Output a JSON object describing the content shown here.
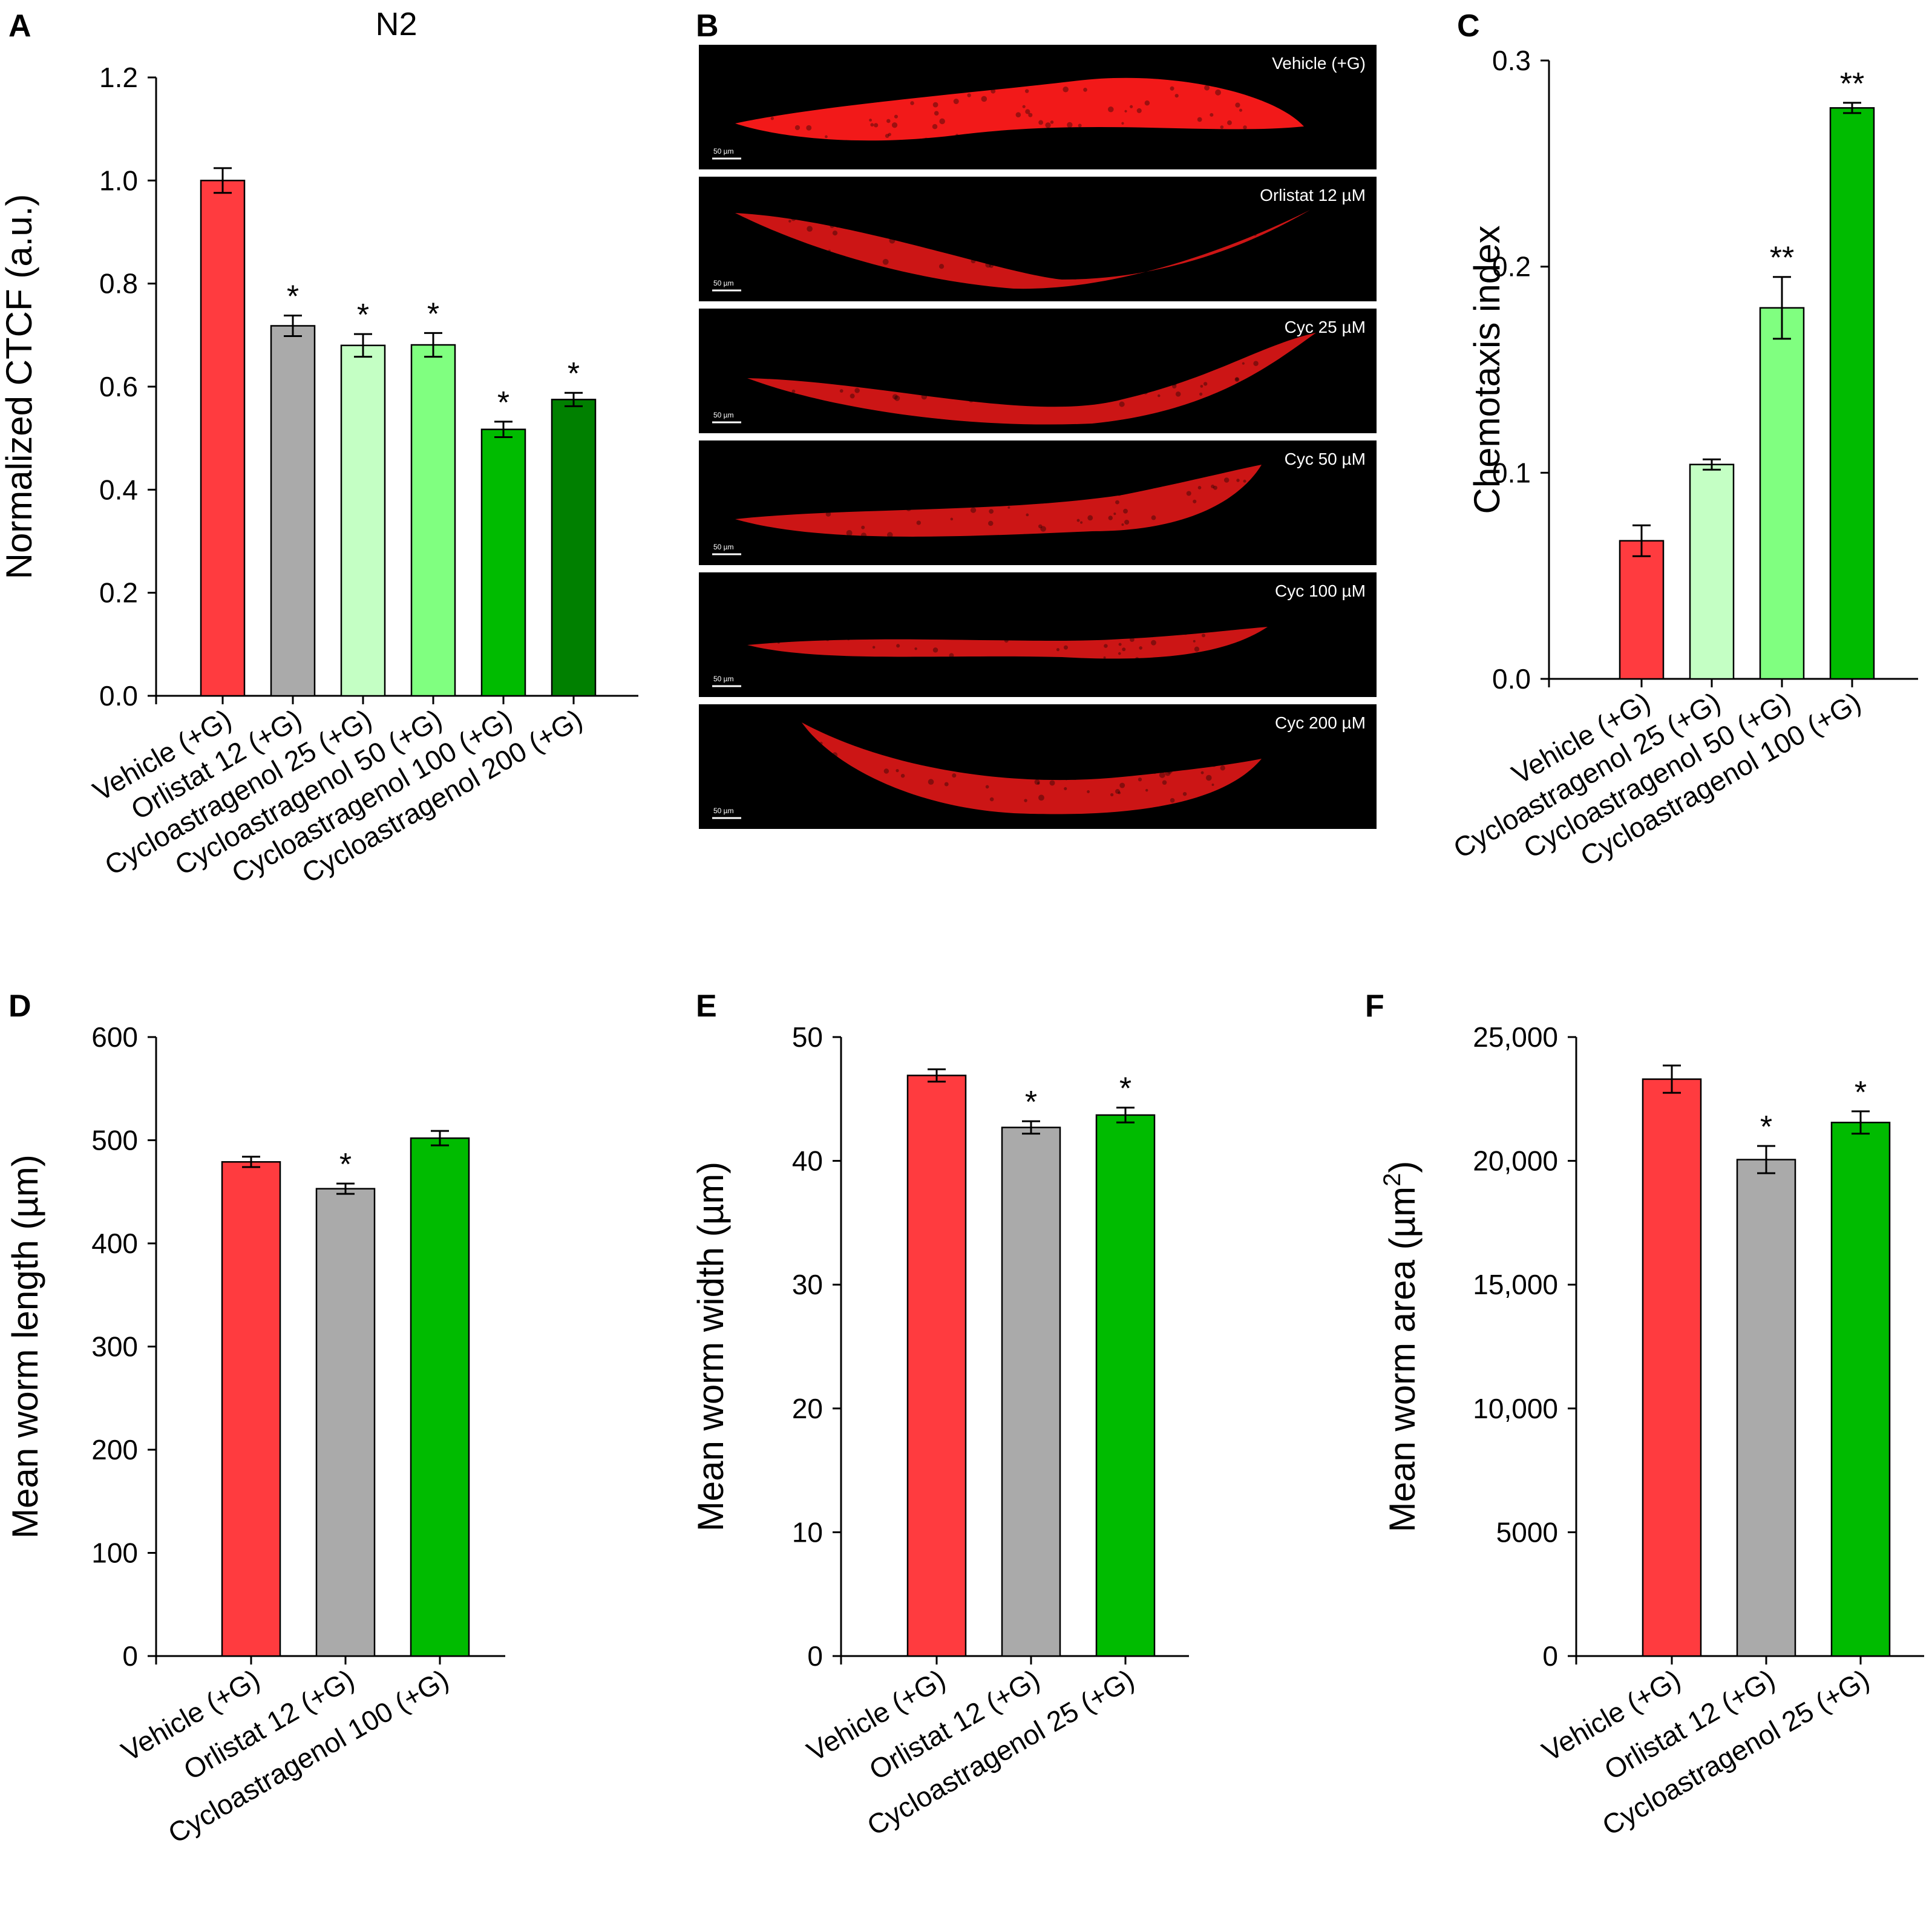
{
  "panel_letters": {
    "A": "A",
    "B": "B",
    "C": "C",
    "D": "D",
    "E": "E",
    "F": "F"
  },
  "colors": {
    "red": "#ff3b3f",
    "gray": "#aaaaaa",
    "lightgreen": "#c4ffc4",
    "midgreen": "#80ff80",
    "green": "#00bb00",
    "darkgreen": "#008000",
    "worm": "#ff1a1a"
  },
  "microscopy": {
    "scale_bar": "50 µm",
    "labels": [
      "Vehicle (+G)",
      "Orlistat 12 µM",
      "Cyc 25 µM",
      "Cyc 50 µM",
      "Cyc 100 µM",
      "Cyc 200 µM"
    ]
  },
  "chart_data": [
    {
      "id": "A",
      "type": "bar",
      "title": "N2",
      "xlabel": "",
      "ylabel": "Normalized CTCF (a.u.)",
      "ylim": [
        0,
        1.2
      ],
      "yticks": [
        "0.0",
        "0.2",
        "0.4",
        "0.6",
        "0.8",
        "1.0",
        "1.2"
      ],
      "categories": [
        "Vehicle (+G)",
        "Orlistat 12 (+G)",
        "Cycloastragenol 25 (+G)",
        "Cycloastragenol 50 (+G)",
        "Cycloastragenol 100 (+G)",
        "Cycloastragenol 200 (+G)"
      ],
      "values": [
        1.0,
        0.718,
        0.68,
        0.681,
        0.517,
        0.575
      ],
      "errors": [
        0.024,
        0.02,
        0.022,
        0.023,
        0.015,
        0.013
      ],
      "significance": [
        "",
        "*",
        "*",
        "*",
        "*",
        "*"
      ],
      "colors": [
        "red",
        "gray",
        "lightgreen",
        "midgreen",
        "green",
        "darkgreen"
      ]
    },
    {
      "id": "C",
      "type": "bar",
      "title": "",
      "xlabel": "",
      "ylabel": "Chemotaxis index",
      "ylim": [
        0,
        0.3
      ],
      "yticks": [
        "0.0",
        "0.1",
        "0.2",
        "0.3"
      ],
      "categories": [
        "Vehicle (+G)",
        "Cycloastragenol 25 (+G)",
        "Cycloastragenol 50 (+G)",
        "Cycloastragenol 100 (+G)"
      ],
      "values": [
        0.067,
        0.104,
        0.18,
        0.277
      ],
      "errors": [
        0.0075,
        0.0025,
        0.015,
        0.0025
      ],
      "significance": [
        "",
        "",
        "**",
        "**"
      ],
      "colors": [
        "red",
        "lightgreen",
        "midgreen",
        "green"
      ]
    },
    {
      "id": "D",
      "type": "bar",
      "title": "",
      "xlabel": "",
      "ylabel": "Mean worm length (µm)",
      "ylim": [
        0,
        600
      ],
      "yticks": [
        "0",
        "100",
        "200",
        "300",
        "400",
        "500",
        "600"
      ],
      "categories": [
        "Vehicle (+G)",
        "Orlistat 12 (+G)",
        "Cycloastragenol 100 (+G)"
      ],
      "values": [
        479,
        453,
        502
      ],
      "errors": [
        5,
        5,
        7
      ],
      "significance": [
        "",
        "*",
        ""
      ],
      "colors": [
        "red",
        "gray",
        "green"
      ]
    },
    {
      "id": "E",
      "type": "bar",
      "title": "",
      "xlabel": "",
      "ylabel": "Mean worm width (µm)",
      "ylim": [
        0,
        50
      ],
      "yticks": [
        "0",
        "10",
        "20",
        "30",
        "40",
        "50"
      ],
      "categories": [
        "Vehicle (+G)",
        "Orlistat 12 (+G)",
        "Cycloastragenol 25 (+G)"
      ],
      "values": [
        46.9,
        42.7,
        43.7
      ],
      "errors": [
        0.5,
        0.5,
        0.6
      ],
      "significance": [
        "",
        "*",
        "*"
      ],
      "colors": [
        "red",
        "gray",
        "green"
      ]
    },
    {
      "id": "F",
      "type": "bar",
      "title": "",
      "xlabel": "",
      "ylabel": "Mean worm area (µm",
      "ylabel_sup": "2",
      "ylabel_end": ")",
      "ylim": [
        0,
        25000
      ],
      "yticks": [
        "0",
        "5000",
        "10,000",
        "15,000",
        "20,000",
        "25,000"
      ],
      "categories": [
        "Vehicle (+G)",
        "Orlistat 12 (+G)",
        "Cycloastragenol 25 (+G)"
      ],
      "values": [
        23300,
        20050,
        21550
      ],
      "errors": [
        550,
        550,
        450
      ],
      "significance": [
        "",
        "*",
        "*"
      ],
      "colors": [
        "red",
        "gray",
        "green"
      ]
    }
  ]
}
